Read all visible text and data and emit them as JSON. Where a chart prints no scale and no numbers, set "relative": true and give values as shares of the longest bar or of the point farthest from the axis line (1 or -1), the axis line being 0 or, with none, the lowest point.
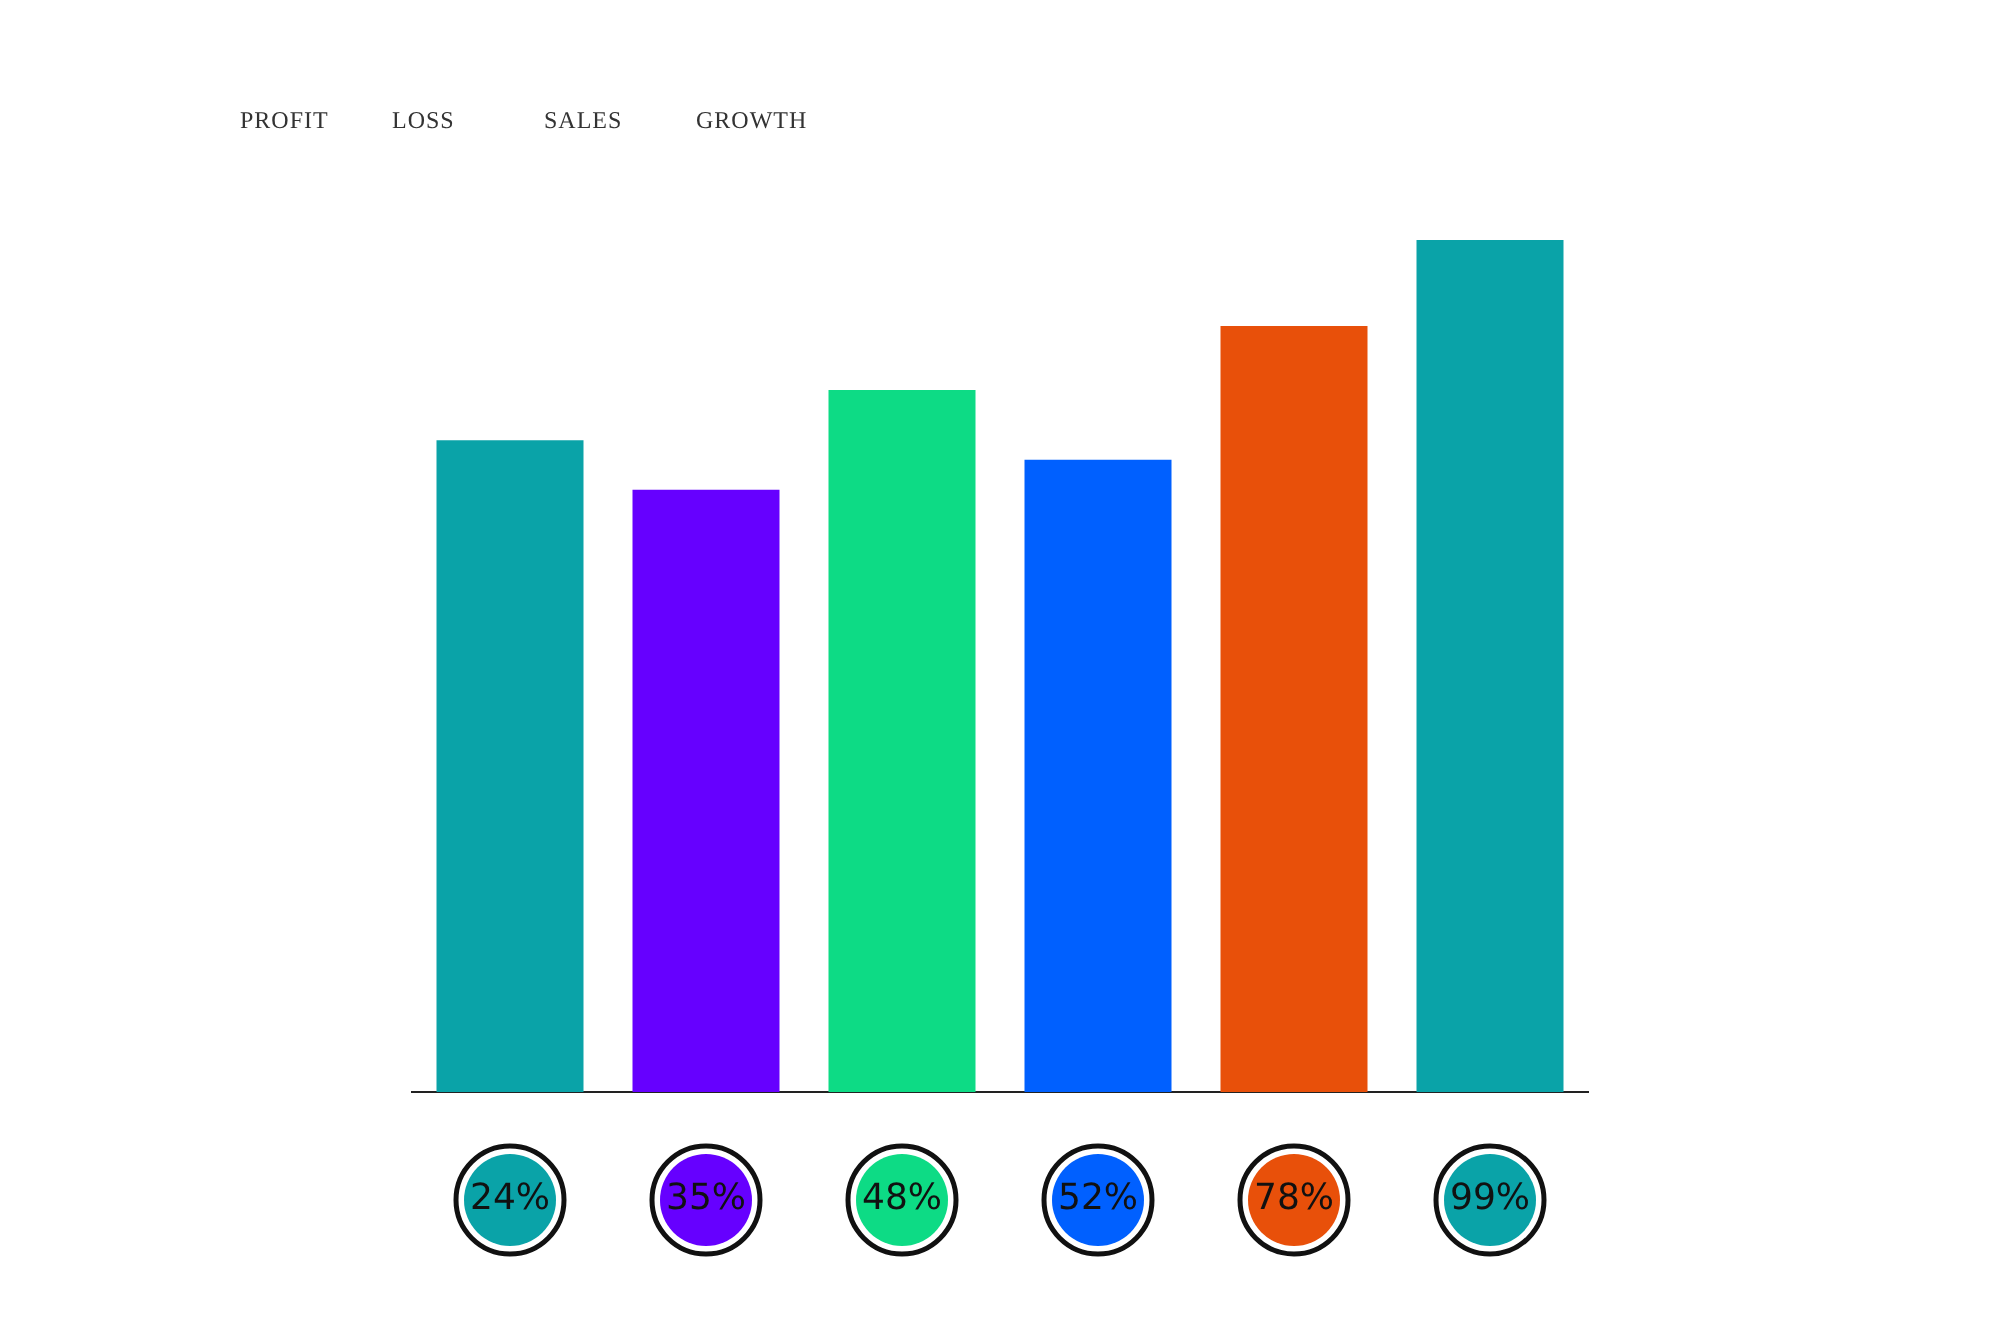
{
  "chart_data": {
    "type": "bar",
    "relative": true,
    "categories": [
      "24%",
      "35%",
      "48%",
      "52%",
      "78%",
      "99%"
    ],
    "values": [
      0.765,
      0.707,
      0.824,
      0.742,
      0.899,
      1
    ],
    "colors": [
      "#0aa3a8",
      "#6600ff",
      "#0ddb85",
      "#0060ff",
      "#e8500a",
      "#0aa3a8"
    ],
    "annotations": [
      "PROFIT",
      "LOSS",
      "SALES",
      "GROWTH"
    ]
  }
}
